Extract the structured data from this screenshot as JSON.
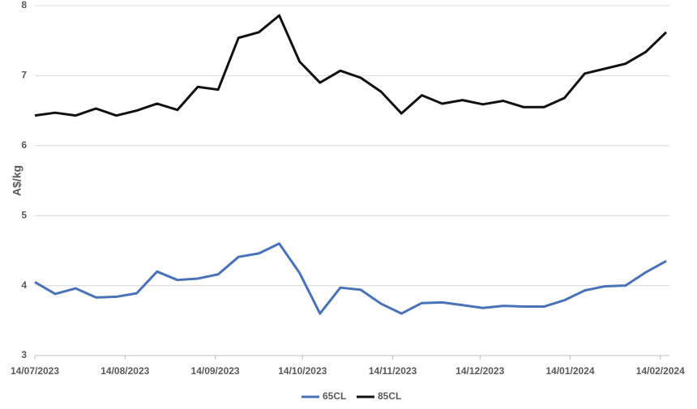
{
  "chart_data": {
    "type": "line",
    "y_label": "A$/kg",
    "x": [
      "14/07/2023",
      "21/07/2023",
      "28/07/2023",
      "04/08/2023",
      "11/08/2023",
      "18/08/2023",
      "25/08/2023",
      "01/09/2023",
      "08/09/2023",
      "15/09/2023",
      "22/09/2023",
      "29/09/2023",
      "06/10/2023",
      "13/10/2023",
      "20/10/2023",
      "27/10/2023",
      "03/11/2023",
      "10/11/2023",
      "17/11/2023",
      "24/11/2023",
      "01/12/2023",
      "08/12/2023",
      "15/12/2023",
      "22/12/2023",
      "29/12/2023",
      "05/01/2024",
      "12/01/2024",
      "19/01/2024",
      "26/01/2024",
      "02/02/2024",
      "09/02/2024",
      "16/02/2024"
    ],
    "series": [
      {
        "name": "65CL",
        "color": "#4a72b8",
        "values": [
          4.05,
          3.88,
          3.96,
          3.83,
          3.84,
          3.89,
          4.2,
          4.08,
          4.1,
          4.16,
          4.41,
          4.46,
          4.6,
          4.18,
          3.6,
          3.97,
          3.94,
          3.74,
          3.6,
          3.75,
          3.76,
          3.72,
          3.68,
          3.71,
          3.7,
          3.7,
          3.79,
          3.93,
          3.99,
          4.0,
          4.19,
          4.35
        ]
      },
      {
        "name": "85CL",
        "color": "#111111",
        "values": [
          6.43,
          6.47,
          6.43,
          6.53,
          6.43,
          6.5,
          6.6,
          6.51,
          6.84,
          6.8,
          7.54,
          7.62,
          7.86,
          7.2,
          6.9,
          7.07,
          6.97,
          6.77,
          6.46,
          6.72,
          6.6,
          6.65,
          6.59,
          6.64,
          6.55,
          6.55,
          6.68,
          7.03,
          7.1,
          7.17,
          7.34,
          7.62
        ]
      }
    ],
    "xlim": [
      "14/07/2023",
      "16/02/2024"
    ],
    "xticks": [
      "14/07/2023",
      "14/08/2023",
      "14/09/2023",
      "14/10/2023",
      "14/11/2023",
      "14/12/2023",
      "14/01/2024",
      "14/02/2024"
    ],
    "ylim": [
      3,
      8
    ],
    "yticks": [
      3,
      4,
      5,
      6,
      7,
      8
    ],
    "grid": true,
    "legend": "bottom"
  }
}
